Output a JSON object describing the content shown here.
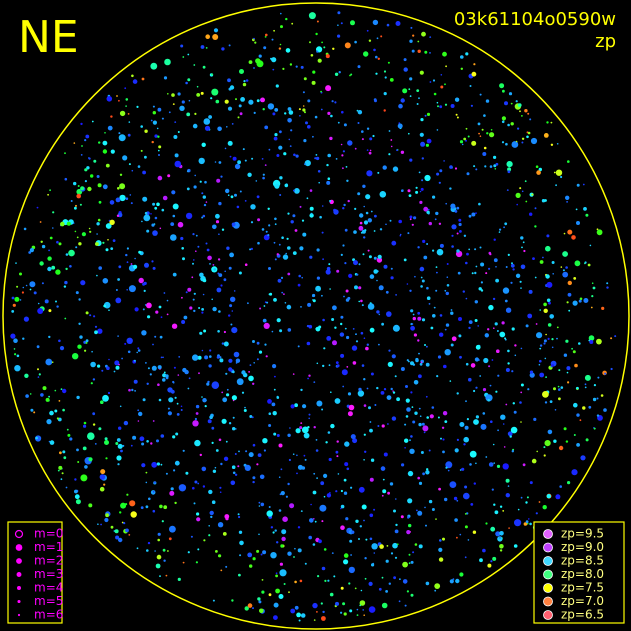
{
  "header": {
    "title": "NE",
    "image_id": "03k61104o0590w",
    "mode": "zp"
  },
  "magnitude_legend": [
    "m=0",
    "m=1",
    "m=2",
    "m=3",
    "m=4",
    "m=5",
    "m=6"
  ],
  "zp_legend": [
    "zp=9.5",
    "zp=9.0",
    "zp=8.5",
    "zp=8.0",
    "zp=7.5",
    "zp=7.0",
    "zp=6.5"
  ]
}
